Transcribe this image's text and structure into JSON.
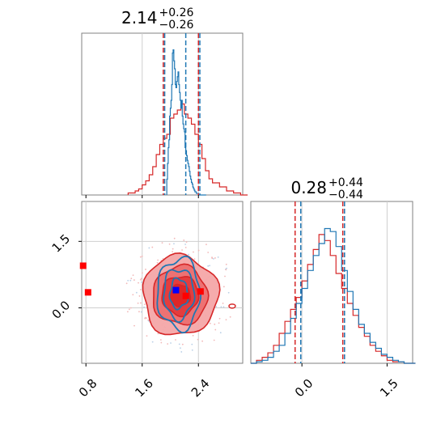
{
  "colors": {
    "blue": "#1f77b4",
    "red": "#d62728",
    "marker_blue": "#0000ff",
    "marker_red": "#ff0000"
  },
  "chart_data": [
    {
      "type": "histogram",
      "panel": "top-left",
      "title": {
        "main": "2.14",
        "sup": "+0.26",
        "sub": "−0.26"
      },
      "xlim": [
        0.74,
        3.03
      ],
      "bins": [
        1.95,
        1.96,
        1.97,
        1.98,
        1.99,
        2.0,
        2.01,
        2.02,
        2.03,
        2.04,
        2.05,
        2.06,
        2.07,
        2.08,
        2.09,
        2.1,
        2.11,
        2.12,
        2.13,
        2.14,
        2.15,
        2.16,
        2.17,
        2.18,
        2.19,
        2.2,
        2.21,
        2.22,
        2.23,
        2.24,
        2.25,
        2.26,
        2.27,
        2.28,
        2.29,
        2.3,
        2.31,
        2.32,
        2.33,
        2.34,
        2.35,
        2.36,
        2.37,
        2.38,
        2.39,
        2.4,
        2.41,
        2.42,
        2.43,
        2.44,
        2.45,
        2.46,
        2.47,
        2.48,
        2.49,
        2.5
      ],
      "series": [
        {
          "color": "blue",
          "counts": [
            0.1,
            0.2,
            0.3,
            0.35,
            0.5,
            0.55,
            0.6,
            0.7,
            0.9,
            0.92,
            0.85,
            0.8,
            0.7,
            0.68,
            0.72,
            0.75,
            0.78,
            0.7,
            0.65,
            0.6,
            0.55,
            0.6,
            0.5,
            0.45,
            0.42,
            0.4,
            0.3,
            0.28,
            0.25,
            0.22,
            0.2,
            0.18,
            0.15,
            0.12,
            0.1,
            0.08,
            0.07,
            0.05,
            0.04,
            0.03,
            0.02,
            0.02,
            0.01,
            0.01,
            0.01,
            0,
            0,
            0,
            0,
            0,
            0,
            0,
            0,
            0,
            0,
            0
          ],
          "lines": [
            1.92,
            2.22,
            2.42
          ]
        }
      ],
      "red_series": {
        "color": "red",
        "x": [
          1.4,
          1.5,
          1.55,
          1.6,
          1.65,
          1.7,
          1.75,
          1.8,
          1.85,
          1.9,
          1.95,
          2.0,
          2.05,
          2.1,
          2.15,
          2.2,
          2.25,
          2.3,
          2.35,
          2.4,
          2.45,
          2.5,
          2.55,
          2.6,
          2.7,
          2.8,
          2.9,
          3.0
        ],
        "counts": [
          0.01,
          0.02,
          0.03,
          0.05,
          0.07,
          0.1,
          0.14,
          0.2,
          0.25,
          0.28,
          0.3,
          0.38,
          0.4,
          0.42,
          0.45,
          0.4,
          0.38,
          0.35,
          0.3,
          0.25,
          0.18,
          0.12,
          0.08,
          0.06,
          0.04,
          0.02,
          0.01,
          0
        ],
        "lines": [
          1.9,
          2.4
        ]
      }
    },
    {
      "type": "histogram",
      "panel": "bottom-right",
      "title": {
        "main": "0.28",
        "sup": "+0.44",
        "sub": "−0.44"
      },
      "xlim": [
        -0.9,
        1.95
      ],
      "xticks": [
        "0.0",
        "1.5"
      ],
      "xtick_values": [
        0.0,
        1.5
      ],
      "series": [
        {
          "color": "blue",
          "x": [
            -0.9,
            -0.8,
            -0.7,
            -0.6,
            -0.5,
            -0.4,
            -0.3,
            -0.2,
            -0.1,
            0.0,
            0.1,
            0.2,
            0.3,
            0.4,
            0.5,
            0.6,
            0.7,
            0.8,
            0.9,
            1.0,
            1.1,
            1.2,
            1.3,
            1.4,
            1.5,
            1.6,
            1.7,
            1.8,
            1.9
          ],
          "counts": [
            0,
            0.01,
            0.02,
            0.04,
            0.08,
            0.12,
            0.2,
            0.3,
            0.4,
            0.5,
            0.62,
            0.72,
            0.8,
            0.9,
            0.88,
            0.78,
            0.62,
            0.48,
            0.36,
            0.26,
            0.2,
            0.14,
            0.1,
            0.06,
            0.04,
            0.02,
            0.01,
            0,
            0
          ],
          "lines": [
            -0.02,
            0.75
          ]
        },
        {
          "color": "red",
          "x": [
            -0.9,
            -0.8,
            -0.7,
            -0.6,
            -0.5,
            -0.4,
            -0.3,
            -0.2,
            -0.1,
            0.0,
            0.1,
            0.2,
            0.3,
            0.4,
            0.5,
            0.6,
            0.7,
            0.8,
            0.9,
            1.0,
            1.1,
            1.2,
            1.3,
            1.4,
            1.5,
            1.6,
            1.7,
            1.8,
            1.9
          ],
          "counts": [
            0,
            0.02,
            0.04,
            0.07,
            0.12,
            0.2,
            0.28,
            0.36,
            0.44,
            0.55,
            0.66,
            0.76,
            0.86,
            0.82,
            0.72,
            0.6,
            0.5,
            0.4,
            0.32,
            0.24,
            0.18,
            0.12,
            0.08,
            0.05,
            0.02,
            0.01,
            0.01,
            0,
            0
          ],
          "lines": [
            -0.12,
            0.72
          ]
        }
      ]
    },
    {
      "type": "contour",
      "panel": "bottom-left",
      "xlim": [
        0.74,
        3.03
      ],
      "ylim": [
        -1.25,
        2.4
      ],
      "xticks": [
        "0.8",
        "1.6",
        "2.4"
      ],
      "xtick_values": [
        0.8,
        1.6,
        2.4
      ],
      "yticks": [
        "0.0",
        "1.5"
      ],
      "ytick_values": [
        0.0,
        1.5
      ],
      "red_center": [
        2.14,
        0.28
      ],
      "red_sigma": [
        0.26,
        0.44
      ],
      "blue_center": [
        2.12,
        0.32
      ],
      "blue_sigma": [
        0.16,
        0.42
      ],
      "markers": [
        {
          "color": "marker_red",
          "x": 0.76,
          "y": 0.95
        },
        {
          "color": "marker_red",
          "x": 0.83,
          "y": 0.35
        },
        {
          "color": "marker_red",
          "x": 2.43,
          "y": 0.37
        },
        {
          "color": "marker_red",
          "x": 2.22,
          "y": 0.27
        },
        {
          "color": "marker_blue",
          "x": 2.08,
          "y": 0.4
        }
      ]
    }
  ]
}
